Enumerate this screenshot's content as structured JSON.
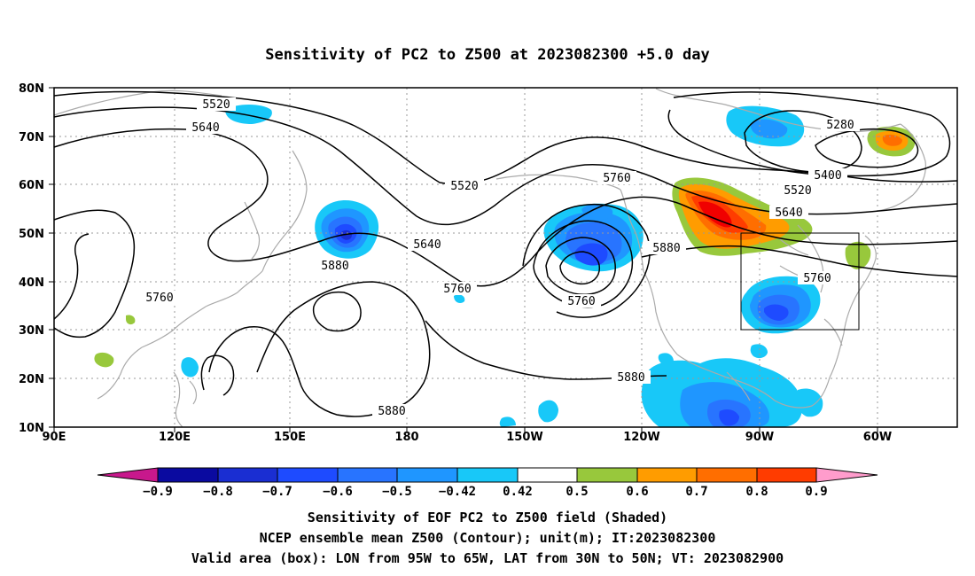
{
  "title": "Sensitivity of PC2 to Z500 at 2023082300 +5.0 day",
  "lon_ticks": [
    "90E",
    "120E",
    "150E",
    "180",
    "150W",
    "120W",
    "90W",
    "60W"
  ],
  "lat_ticks": [
    "80N",
    "70N",
    "60N",
    "50N",
    "40N",
    "30N",
    "20N",
    "10N"
  ],
  "contour_labels": {
    "c5520_a": "5520",
    "c5640_a": "5640",
    "c5520_b": "5520",
    "c5760_a": "5760",
    "c5640_b": "5640",
    "c5880_a": "5880",
    "c5760_b": "5760",
    "c5880_b": "5880",
    "c5760_c": "5760",
    "c5880_c": "5880",
    "c5880_d": "5880",
    "c5760_d": "5760",
    "c5280": "5280",
    "c5400": "5400",
    "c5520_c": "5520",
    "c5640_c": "5640"
  },
  "colorbar": {
    "labels": [
      "−0.9",
      "−0.8",
      "−0.7",
      "−0.6",
      "−0.5",
      "−0.42",
      "0.42",
      "0.5",
      "0.6",
      "0.7",
      "0.8",
      "0.9"
    ],
    "colors": {
      "under": "#c8188c",
      "n09": "#0a0aa0",
      "n08": "#1a2ed2",
      "n07": "#1e4bff",
      "n06": "#2874ff",
      "n05": "#1f96ff",
      "n042": "#18c8f8",
      "zero": "#ffffff",
      "p042": "#98c83c",
      "p05": "#ff9c00",
      "p06": "#ff6e00",
      "p07": "#ff3c00",
      "p08": "#f00000",
      "over": "#ff9ccc"
    }
  },
  "captions": {
    "line1": "Sensitivity of EOF PC2 to Z500 field (Shaded)",
    "line2": "NCEP ensemble mean Z500 (Contour); unit(m); IT:2023082300",
    "line3": "Valid area (box): LON from 95W to 65W, LAT from 30N to 50N; VT: 2023082900"
  },
  "map_data": {
    "extent": {
      "lon": [
        "90E",
        "30W"
      ],
      "lat": [
        "10N",
        "80N"
      ]
    },
    "valid_box": {
      "lon": [
        "95W",
        "65W"
      ],
      "lat": [
        "30N",
        "50N"
      ]
    },
    "contour_levels_m": [
      5280,
      5400,
      5520,
      5640,
      5760,
      5880
    ]
  }
}
